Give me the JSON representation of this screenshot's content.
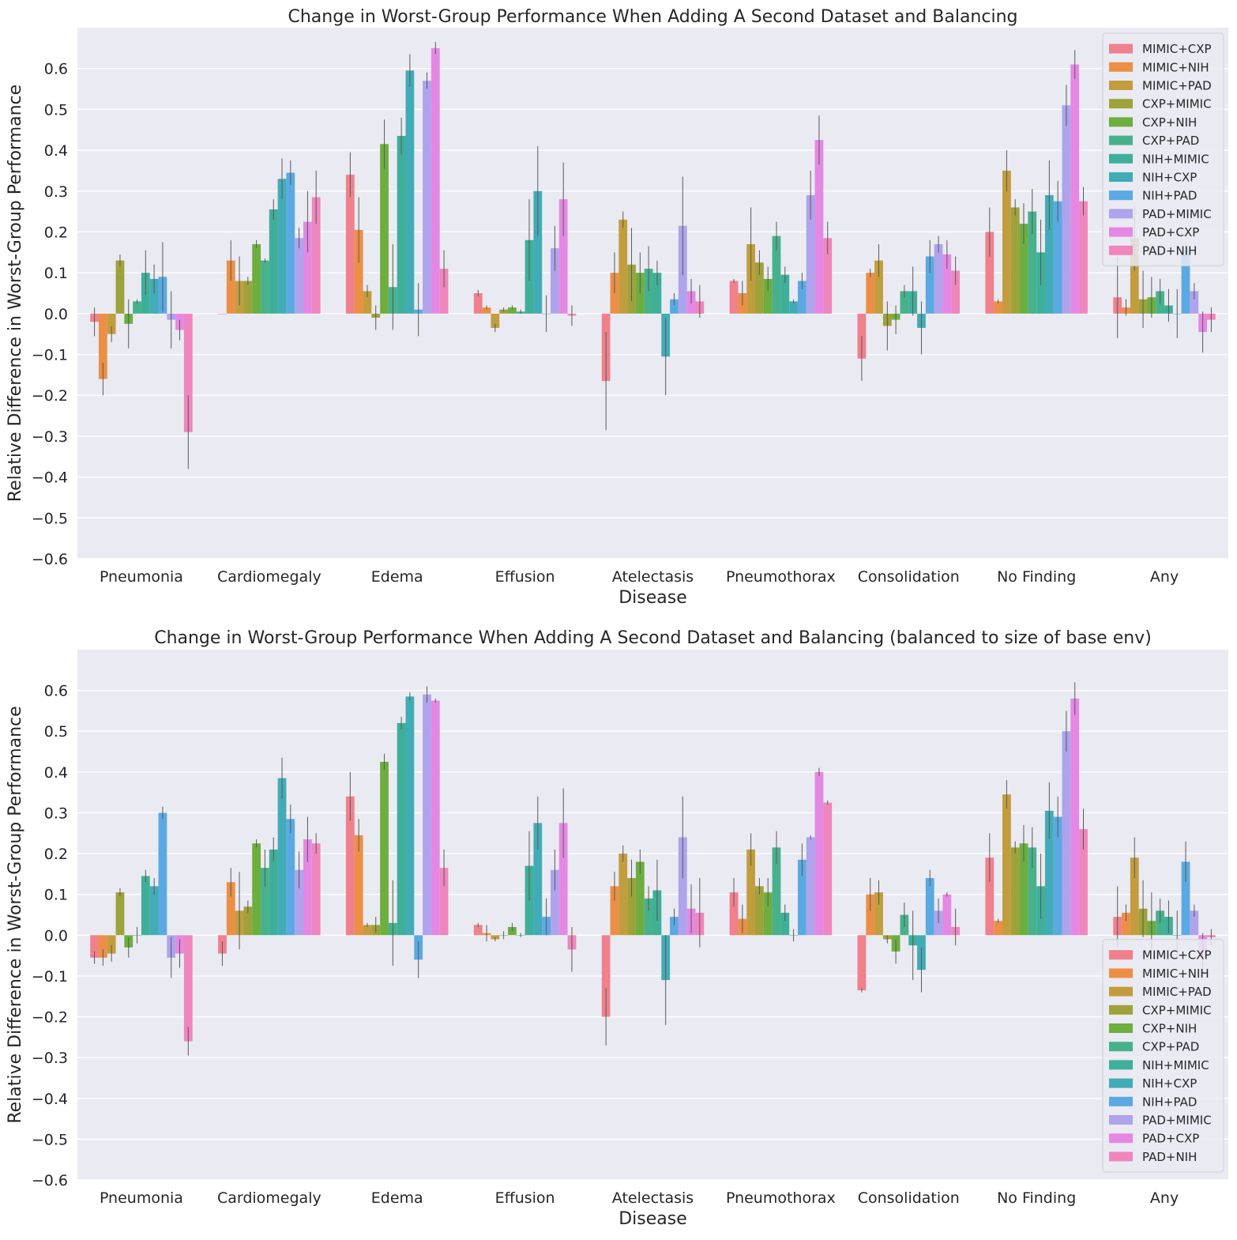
{
  "chart_data": [
    {
      "type": "bar",
      "title": "Change in Worst-Group Performance When Adding A Second Dataset and Balancing",
      "xlabel": "Disease",
      "ylabel": "Relative Difference in Worst-Group Performance",
      "ylim": [
        -0.6,
        0.7
      ],
      "yticks": [
        -0.6,
        -0.5,
        -0.4,
        -0.3,
        -0.2,
        -0.1,
        0.0,
        0.1,
        0.2,
        0.3,
        0.4,
        0.5,
        0.6
      ],
      "ytick_labels": [
        "−0.6",
        "−0.5",
        "−0.4",
        "−0.3",
        "−0.2",
        "−0.1",
        "0.0",
        "0.1",
        "0.2",
        "0.3",
        "0.4",
        "0.5",
        "0.6"
      ],
      "grid": true,
      "legend_position": "top-right",
      "categories": [
        "Pneumonia",
        "Cardiomegaly",
        "Edema",
        "Effusion",
        "Atelectasis",
        "Pneumothorax",
        "Consolidation",
        "No Finding",
        "Any"
      ],
      "series": [
        {
          "name": "MIMIC+CXP",
          "color": "#f0808c",
          "values": [
            -0.02,
            0.0,
            0.34,
            0.05,
            -0.165,
            0.08,
            -0.11,
            0.2,
            0.04
          ],
          "err": [
            0.035,
            0.0,
            0.055,
            0.008,
            0.12,
            0.005,
            0.055,
            0.06,
            0.1
          ]
        },
        {
          "name": "MIMIC+NIH",
          "color": "#ec8f45",
          "values": [
            -0.16,
            0.13,
            0.205,
            0.015,
            0.1,
            0.05,
            0.1,
            0.03,
            0.015
          ],
          "err": [
            0.04,
            0.05,
            0.08,
            0.005,
            0.05,
            0.03,
            0.01,
            0.005,
            0.02
          ]
        },
        {
          "name": "MIMIC+PAD",
          "color": "#c29d3e",
          "values": [
            -0.05,
            0.08,
            0.055,
            -0.035,
            0.23,
            0.17,
            0.13,
            0.35,
            0.185
          ],
          "err": [
            0.02,
            0.06,
            0.015,
            0.01,
            0.02,
            0.09,
            0.04,
            0.05,
            0.08
          ]
        },
        {
          "name": "CXP+MIMIC",
          "color": "#9ea23a",
          "values": [
            0.13,
            0.08,
            -0.01,
            0.01,
            0.12,
            0.125,
            -0.03,
            0.26,
            0.035
          ],
          "err": [
            0.015,
            0.01,
            0.03,
            0.005,
            0.09,
            0.03,
            0.06,
            0.02,
            0.07
          ]
        },
        {
          "name": "CXP+NIH",
          "color": "#6cae3f",
          "values": [
            -0.025,
            0.17,
            0.415,
            0.015,
            0.1,
            0.085,
            -0.015,
            0.22,
            0.04
          ],
          "err": [
            0.06,
            0.01,
            0.06,
            0.005,
            0.05,
            0.03,
            0.035,
            0.05,
            0.05
          ]
        },
        {
          "name": "CXP+PAD",
          "color": "#47b18c",
          "values": [
            0.03,
            0.13,
            0.065,
            0.005,
            0.11,
            0.19,
            0.055,
            0.25,
            0.055
          ],
          "err": [
            0.005,
            0.005,
            0.105,
            0.005,
            0.055,
            0.035,
            0.015,
            0.055,
            0.03
          ]
        },
        {
          "name": "NIH+MIMIC",
          "color": "#3eaf9a",
          "values": [
            0.1,
            0.255,
            0.435,
            0.18,
            0.1,
            0.095,
            0.055,
            0.15,
            0.02
          ],
          "err": [
            0.055,
            0.025,
            0.045,
            0.1,
            0.03,
            0.02,
            0.06,
            0.08,
            0.04
          ]
        },
        {
          "name": "NIH+CXP",
          "color": "#42acb6",
          "values": [
            0.085,
            0.33,
            0.595,
            0.3,
            -0.105,
            0.03,
            -0.035,
            0.29,
            0.0
          ],
          "err": [
            0.035,
            0.05,
            0.04,
            0.11,
            0.095,
            0.005,
            0.065,
            0.085,
            0.06
          ]
        },
        {
          "name": "NIH+PAD",
          "color": "#5ba9e2",
          "values": [
            0.09,
            0.345,
            0.01,
            0.0,
            0.035,
            0.08,
            0.14,
            0.275,
            0.155
          ],
          "err": [
            0.085,
            0.03,
            0.065,
            0.045,
            0.015,
            0.02,
            0.04,
            0.05,
            0.02
          ]
        },
        {
          "name": "PAD+MIMIC",
          "color": "#aea3ec",
          "values": [
            -0.015,
            0.185,
            0.57,
            0.16,
            0.215,
            0.29,
            0.17,
            0.51,
            0.055
          ],
          "err": [
            0.07,
            0.025,
            0.02,
            0.055,
            0.12,
            0.06,
            0.02,
            0.05,
            0.02
          ]
        },
        {
          "name": "PAD+CXP",
          "color": "#e488e3",
          "values": [
            -0.04,
            0.225,
            0.65,
            0.28,
            0.055,
            0.425,
            0.145,
            0.61,
            -0.045
          ],
          "err": [
            0.025,
            0.075,
            0.015,
            0.09,
            0.03,
            0.06,
            0.035,
            0.035,
            0.05
          ]
        },
        {
          "name": "PAD+NIH",
          "color": "#ef86bd",
          "values": [
            -0.29,
            0.285,
            0.11,
            -0.005,
            0.03,
            0.185,
            0.105,
            0.275,
            -0.015
          ],
          "err": [
            0.09,
            0.065,
            0.045,
            0.025,
            0.04,
            0.04,
            0.035,
            0.035,
            0.03
          ]
        }
      ]
    },
    {
      "type": "bar",
      "title": "Change in Worst-Group Performance When Adding A Second Dataset and Balancing (balanced to size of base env)",
      "xlabel": "Disease",
      "ylabel": "Relative Difference in Worst-Group Performance",
      "ylim": [
        -0.6,
        0.7
      ],
      "yticks": [
        -0.6,
        -0.5,
        -0.4,
        -0.3,
        -0.2,
        -0.1,
        0.0,
        0.1,
        0.2,
        0.3,
        0.4,
        0.5,
        0.6
      ],
      "ytick_labels": [
        "−0.6",
        "−0.5",
        "−0.4",
        "−0.3",
        "−0.2",
        "−0.1",
        "0.0",
        "0.1",
        "0.2",
        "0.3",
        "0.4",
        "0.5",
        "0.6"
      ],
      "grid": true,
      "legend_position": "bottom-right",
      "categories": [
        "Pneumonia",
        "Cardiomegaly",
        "Edema",
        "Effusion",
        "Atelectasis",
        "Pneumothorax",
        "Consolidation",
        "No Finding",
        "Any"
      ],
      "series": [
        {
          "name": "MIMIC+CXP",
          "color": "#f0808c",
          "values": [
            -0.055,
            -0.045,
            0.34,
            0.025,
            -0.2,
            0.105,
            -0.135,
            0.19,
            0.045
          ],
          "err": [
            0.015,
            0.03,
            0.06,
            0.005,
            0.07,
            0.035,
            0.005,
            0.06,
            0.075
          ]
        },
        {
          "name": "MIMIC+NIH",
          "color": "#ec8f45",
          "values": [
            -0.055,
            0.13,
            0.245,
            0.005,
            0.12,
            0.04,
            0.1,
            0.035,
            0.055
          ],
          "err": [
            0.02,
            0.035,
            0.04,
            0.02,
            0.035,
            0.035,
            0.04,
            0.005,
            0.02
          ]
        },
        {
          "name": "MIMIC+PAD",
          "color": "#c29d3e",
          "values": [
            -0.045,
            0.06,
            0.025,
            -0.01,
            0.2,
            0.21,
            0.105,
            0.345,
            0.19
          ],
          "err": [
            0.02,
            0.095,
            0.005,
            0.005,
            0.02,
            0.04,
            0.03,
            0.035,
            0.05
          ]
        },
        {
          "name": "CXP+MIMIC",
          "color": "#9ea23a",
          "values": [
            0.105,
            0.07,
            0.025,
            0.0,
            0.14,
            0.12,
            -0.01,
            0.215,
            0.065
          ],
          "err": [
            0.01,
            0.015,
            0.02,
            0.01,
            0.045,
            0.02,
            0.01,
            0.015,
            0.07
          ]
        },
        {
          "name": "CXP+NIH",
          "color": "#6cae3f",
          "values": [
            -0.03,
            0.225,
            0.425,
            0.02,
            0.18,
            0.105,
            -0.04,
            0.225,
            0.035
          ],
          "err": [
            0.025,
            0.01,
            0.02,
            0.01,
            0.03,
            0.035,
            0.03,
            0.045,
            0.07
          ]
        },
        {
          "name": "CXP+PAD",
          "color": "#47b18c",
          "values": [
            0.0,
            0.165,
            0.03,
            0.0,
            0.09,
            0.215,
            0.05,
            0.215,
            0.06
          ],
          "err": [
            0.02,
            0.045,
            0.105,
            0.005,
            0.03,
            0.04,
            0.03,
            0.05,
            0.03
          ]
        },
        {
          "name": "NIH+MIMIC",
          "color": "#3eaf9a",
          "values": [
            0.145,
            0.21,
            0.52,
            0.17,
            0.11,
            0.055,
            -0.025,
            0.12,
            0.045
          ],
          "err": [
            0.015,
            0.03,
            0.015,
            0.085,
            0.075,
            0.02,
            0.085,
            0.08,
            0.04
          ]
        },
        {
          "name": "NIH+CXP",
          "color": "#42acb6",
          "values": [
            0.12,
            0.385,
            0.585,
            0.275,
            -0.11,
            0.0,
            -0.085,
            0.305,
            0.0
          ],
          "err": [
            0.02,
            0.05,
            0.01,
            0.065,
            0.11,
            0.015,
            0.055,
            0.07,
            0.06
          ]
        },
        {
          "name": "NIH+PAD",
          "color": "#5ba9e2",
          "values": [
            0.3,
            0.285,
            -0.06,
            0.045,
            0.045,
            0.185,
            0.14,
            0.29,
            0.18
          ],
          "err": [
            0.015,
            0.035,
            0.045,
            0.045,
            0.02,
            0.04,
            0.02,
            0.05,
            0.05
          ]
        },
        {
          "name": "PAD+MIMIC",
          "color": "#aea3ec",
          "values": [
            -0.055,
            0.16,
            0.59,
            0.16,
            0.24,
            0.24,
            0.06,
            0.5,
            0.06
          ],
          "err": [
            0.05,
            0.045,
            0.02,
            0.05,
            0.1,
            0.005,
            0.03,
            0.05,
            0.015
          ]
        },
        {
          "name": "PAD+CXP",
          "color": "#e488e3",
          "values": [
            -0.045,
            0.235,
            0.575,
            0.275,
            0.065,
            0.4,
            0.1,
            0.58,
            -0.045
          ],
          "err": [
            0.035,
            0.055,
            0.005,
            0.085,
            0.06,
            0.01,
            0.005,
            0.04,
            0.05
          ]
        },
        {
          "name": "PAD+NIH",
          "color": "#ef86bd",
          "values": [
            -0.26,
            0.225,
            0.165,
            -0.035,
            0.055,
            0.325,
            0.02,
            0.26,
            -0.005
          ],
          "err": [
            0.035,
            0.025,
            0.045,
            0.055,
            0.085,
            0.005,
            0.045,
            0.05,
            0.02
          ]
        }
      ]
    }
  ]
}
